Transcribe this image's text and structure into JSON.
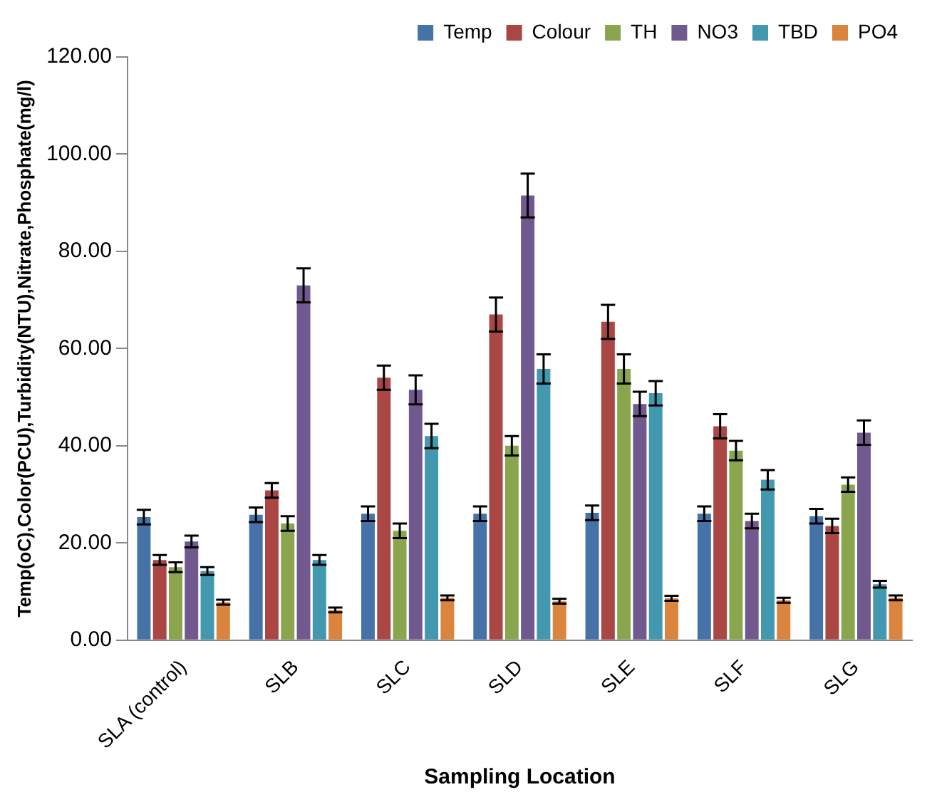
{
  "chart_data": {
    "type": "bar",
    "xlabel": "Sampling Location",
    "ylabel": "Temp(oC),Color(PCU),Turbidity(NTU),Nitrate,Phosphate(mg/l)",
    "categories": [
      "SLA (control)",
      "SLB",
      "SLC",
      "SLD",
      "SLE",
      "SLF",
      "SLG"
    ],
    "series": [
      {
        "name": "Temp",
        "color": "#4572a7",
        "values": [
          25.3,
          25.8,
          26,
          26,
          26.2,
          26,
          25.5
        ],
        "errors": [
          1.5,
          1.5,
          1.5,
          1.5,
          1.5,
          1.5,
          1.5
        ]
      },
      {
        "name": "Colour",
        "color": "#aa4643",
        "values": [
          16.5,
          30.8,
          54,
          67,
          65.5,
          44,
          23.5
        ],
        "errors": [
          1,
          1.5,
          2.5,
          3.5,
          3.5,
          2.5,
          1.5
        ]
      },
      {
        "name": "TH",
        "color": "#89a54e",
        "values": [
          15,
          24,
          22.5,
          40,
          55.8,
          39,
          32
        ],
        "errors": [
          1,
          1.5,
          1.5,
          2,
          3,
          2,
          1.5
        ]
      },
      {
        "name": "NO3",
        "color": "#71588f",
        "values": [
          20.3,
          73,
          51.5,
          91.5,
          48.6,
          24.5,
          42.7
        ],
        "errors": [
          1.2,
          3.5,
          3,
          4.5,
          2.5,
          1.5,
          2.5
        ]
      },
      {
        "name": "TBD",
        "color": "#4198af",
        "values": [
          14.2,
          16.5,
          42,
          55.8,
          50.8,
          33,
          11.5
        ],
        "errors": [
          0.8,
          1,
          2.5,
          3,
          2.5,
          2,
          0.7
        ]
      },
      {
        "name": "PO4",
        "color": "#db843d",
        "values": [
          7.8,
          6.2,
          8.7,
          8,
          8.6,
          8.2,
          8.7
        ],
        "errors": [
          0.5,
          0.5,
          0.5,
          0.5,
          0.5,
          0.5,
          0.5
        ]
      }
    ],
    "ylim": [
      0,
      120
    ],
    "yticks": [
      {
        "value": 0,
        "label": "0.00"
      },
      {
        "value": 20,
        "label": "20.00"
      },
      {
        "value": 40,
        "label": "40.00"
      },
      {
        "value": 60,
        "label": "60.00"
      },
      {
        "value": 80,
        "label": "80.00"
      },
      {
        "value": 100,
        "label": "100.00"
      },
      {
        "value": 120,
        "label": "120.00"
      }
    ],
    "grid": false,
    "legend": "top"
  }
}
